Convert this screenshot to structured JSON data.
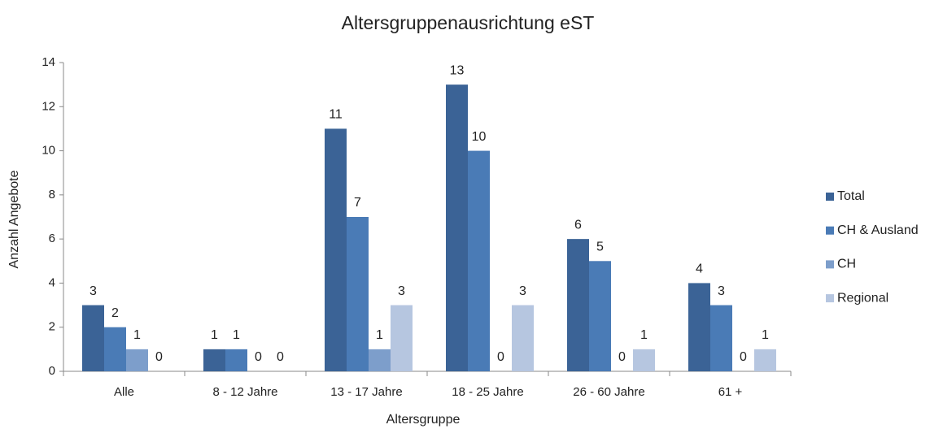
{
  "chart_data": {
    "type": "bar",
    "title": "Altersgruppenausrichtung eST",
    "x_label": "Altersgruppe",
    "y_label": "Anzahl Angebote",
    "categories": [
      "Alle",
      "8 - 12 Jahre",
      "13 - 17 Jahre",
      "18 - 25 Jahre",
      "26 - 60 Jahre",
      "61 +"
    ],
    "series": [
      {
        "name": "Total",
        "color": "#3b6396",
        "values": [
          3,
          1,
          11,
          13,
          6,
          4
        ]
      },
      {
        "name": "CH & Ausland",
        "color": "#4a7bb6",
        "values": [
          2,
          1,
          7,
          10,
          5,
          3
        ]
      },
      {
        "name": "CH",
        "color": "#7d9ecb",
        "values": [
          1,
          0,
          1,
          0,
          0,
          0
        ]
      },
      {
        "name": "Regional",
        "color": "#b6c6e0",
        "values": [
          0,
          0,
          3,
          3,
          1,
          1
        ]
      }
    ],
    "ylim": [
      0,
      14
    ],
    "yticks": [
      0,
      2,
      4,
      6,
      8,
      10,
      12,
      14
    ],
    "grid": false,
    "legend": "right"
  }
}
